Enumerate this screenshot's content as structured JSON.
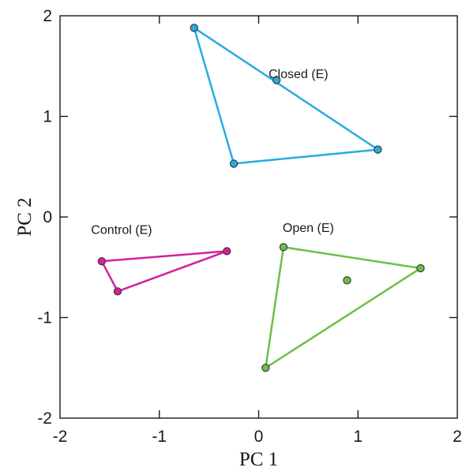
{
  "chart_data": {
    "type": "scatter",
    "title": "",
    "xlabel": "PC 1",
    "ylabel": "PC 2",
    "xlim": [
      -2,
      2
    ],
    "ylim": [
      -2,
      2
    ],
    "xticks": [
      -2,
      -1,
      0,
      1,
      2
    ],
    "yticks": [
      -2,
      -1,
      0,
      1,
      2
    ],
    "xtick_labels": [
      "-2",
      "-1",
      "0",
      "1",
      "2"
    ],
    "ytick_labels": [
      "-2",
      "-1",
      "0",
      "1",
      "2"
    ],
    "grid": false,
    "series": [
      {
        "name": "Closed (E)",
        "color": "#29abe2",
        "hull": [
          0,
          3,
          2
        ],
        "points": [
          [
            -0.65,
            1.88
          ],
          [
            0.18,
            1.36
          ],
          [
            1.2,
            0.67
          ],
          [
            -0.25,
            0.53
          ]
        ]
      },
      {
        "name": "Control (E)",
        "color": "#d4219b",
        "hull": [
          0,
          1,
          2
        ],
        "points": [
          [
            -1.58,
            -0.44
          ],
          [
            -1.42,
            -0.74
          ],
          [
            -0.32,
            -0.34
          ]
        ]
      },
      {
        "name": "Open (E)",
        "color": "#6bbf47",
        "hull": [
          0,
          1,
          2
        ],
        "points": [
          [
            0.25,
            -0.3
          ],
          [
            0.07,
            -1.5
          ],
          [
            1.63,
            -0.51
          ],
          [
            0.89,
            -0.63
          ]
        ]
      }
    ],
    "annotations": [
      {
        "text": "Closed (E)",
        "x": 0.4,
        "y": 1.38
      },
      {
        "text": "Control (E)",
        "x": -1.38,
        "y": -0.17
      },
      {
        "text": "Open (E)",
        "x": 0.5,
        "y": -0.15
      }
    ]
  }
}
